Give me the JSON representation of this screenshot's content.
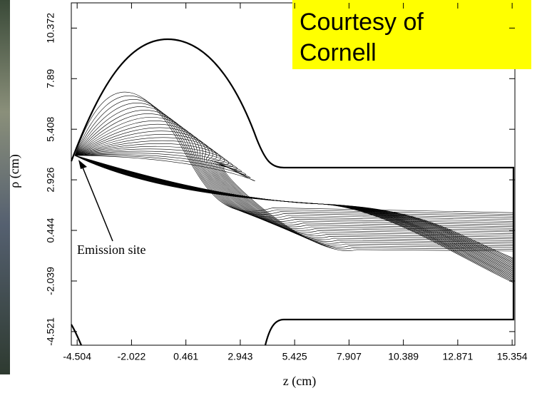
{
  "chart_data": {
    "type": "trajectory",
    "xlabel": "z (cm)",
    "ylabel": "ρ (cm)",
    "annotation": "Emission site",
    "credit": [
      "Courtesy of",
      "Cornell"
    ],
    "xlim": [
      -4.77,
      15.48
    ],
    "ylim": [
      -5.19,
      11.61
    ],
    "xticks": [
      -4.504,
      -2.022,
      0.461,
      2.943,
      5.425,
      7.907,
      10.389,
      12.871,
      15.354
    ],
    "yticks": [
      -4.521,
      -2.039,
      0.444,
      2.926,
      5.408,
      7.89,
      {
        "value": 10.372,
        "label": "10.372"
      }
    ],
    "color": "#000000"
  }
}
